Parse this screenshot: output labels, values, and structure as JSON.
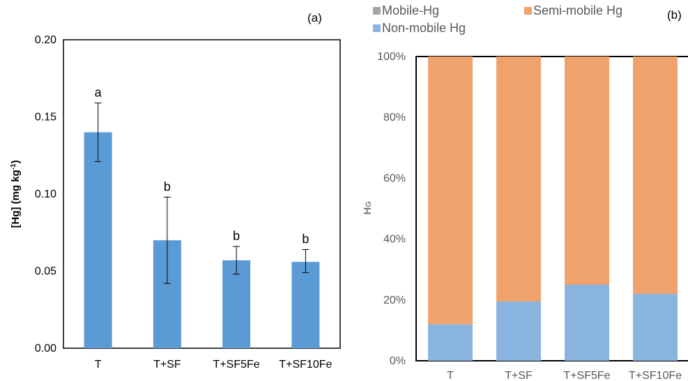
{
  "panels": {
    "a_label": "(a)",
    "b_label": "(b)"
  },
  "chart_data": [
    {
      "type": "bar",
      "panel": "(a)",
      "ylabel": "[Hg] (mg kg",
      "ylabel_sup": "-1",
      "ylabel_close": ")",
      "ylim": [
        0,
        0.2
      ],
      "yticks": [
        "0.00",
        "0.05",
        "0.10",
        "0.15",
        "0.20"
      ],
      "ytick_values": [
        0,
        0.05,
        0.1,
        0.15,
        0.2
      ],
      "categories": [
        "T",
        "T+SF",
        "T+SF5Fe",
        "T+SF10Fe"
      ],
      "values": [
        0.14,
        0.07,
        0.057,
        0.056
      ],
      "error_low": [
        0.121,
        0.042,
        0.048,
        0.049
      ],
      "error_high": [
        0.159,
        0.098,
        0.066,
        0.064
      ],
      "significance": [
        "a",
        "b",
        "b",
        "b"
      ],
      "color": "#5b9bd5"
    },
    {
      "type": "bar",
      "stacked": "percent",
      "panel": "(b)",
      "ylabel": "Hg",
      "yticks": [
        "0%",
        "20%",
        "40%",
        "60%",
        "80%",
        "100%"
      ],
      "ytick_values": [
        0,
        20,
        40,
        60,
        80,
        100
      ],
      "categories": [
        "T",
        "T+SF",
        "T+SF5Fe",
        "T+SF10Fe"
      ],
      "legend_position": "top",
      "series": [
        {
          "name": "Non-mobile Hg",
          "values": [
            12,
            19.5,
            25,
            22
          ],
          "color": "#8ab4e0"
        },
        {
          "name": "Mobile-Hg",
          "values": [
            0,
            0,
            0,
            0
          ],
          "color": "#a5a5a5"
        },
        {
          "name": "Semi-mobile Hg",
          "values": [
            88,
            80.5,
            75,
            78
          ],
          "color": "#f0a26c"
        }
      ],
      "legend": [
        "Mobile-Hg",
        "Semi-mobile Hg",
        "Non-mobile Hg"
      ]
    }
  ]
}
